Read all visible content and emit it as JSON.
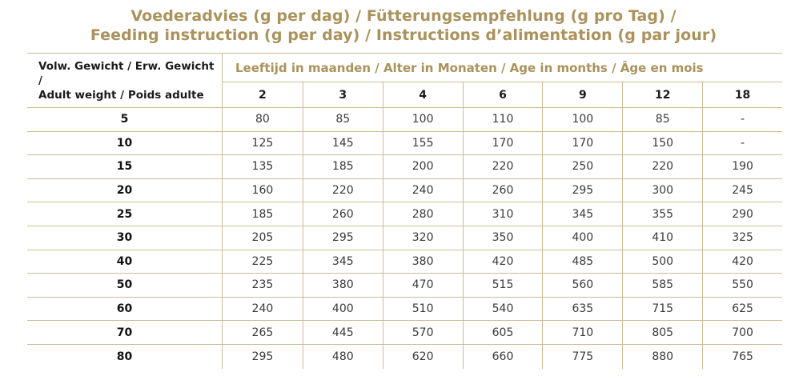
{
  "title": {
    "line1": "Voederadvies (g per dag) / Fütterungsempfehlung (g pro Tag) /",
    "line2": "Feeding instruction (g per day) / Instructions d’alimentation (g par jour)"
  },
  "table": {
    "weight_header_line1": "Volw. Gewicht / Erw. Gewicht /",
    "weight_header_line2": "Adult weight / Poids adulte",
    "age_header": "Leeftijd in maanden / Alter in Monaten / Age in months / Âge en mois",
    "age_columns": [
      "2",
      "3",
      "4",
      "6",
      "9",
      "12",
      "18"
    ],
    "rows": [
      {
        "weight": "5",
        "values": [
          "80",
          "85",
          "100",
          "110",
          "100",
          "85",
          "-"
        ]
      },
      {
        "weight": "10",
        "values": [
          "125",
          "145",
          "155",
          "170",
          "170",
          "150",
          "-"
        ]
      },
      {
        "weight": "15",
        "values": [
          "135",
          "185",
          "200",
          "220",
          "250",
          "220",
          "190"
        ]
      },
      {
        "weight": "20",
        "values": [
          "160",
          "220",
          "240",
          "260",
          "295",
          "300",
          "245"
        ]
      },
      {
        "weight": "25",
        "values": [
          "185",
          "260",
          "280",
          "310",
          "345",
          "355",
          "290"
        ]
      },
      {
        "weight": "30",
        "values": [
          "205",
          "295",
          "320",
          "350",
          "400",
          "410",
          "325"
        ]
      },
      {
        "weight": "40",
        "values": [
          "225",
          "345",
          "380",
          "420",
          "485",
          "500",
          "420"
        ]
      },
      {
        "weight": "50",
        "values": [
          "235",
          "380",
          "470",
          "515",
          "560",
          "585",
          "550"
        ]
      },
      {
        "weight": "60",
        "values": [
          "240",
          "400",
          "510",
          "540",
          "635",
          "715",
          "625"
        ]
      },
      {
        "weight": "70",
        "values": [
          "265",
          "445",
          "570",
          "605",
          "710",
          "805",
          "700"
        ]
      },
      {
        "weight": "80",
        "values": [
          "295",
          "480",
          "620",
          "660",
          "775",
          "880",
          "765"
        ]
      }
    ]
  },
  "colors": {
    "gold_text": "#aa925a",
    "table_line": "#ccbc92",
    "header_text": "#1b1b1b",
    "value_text": "#3a3a3a"
  }
}
